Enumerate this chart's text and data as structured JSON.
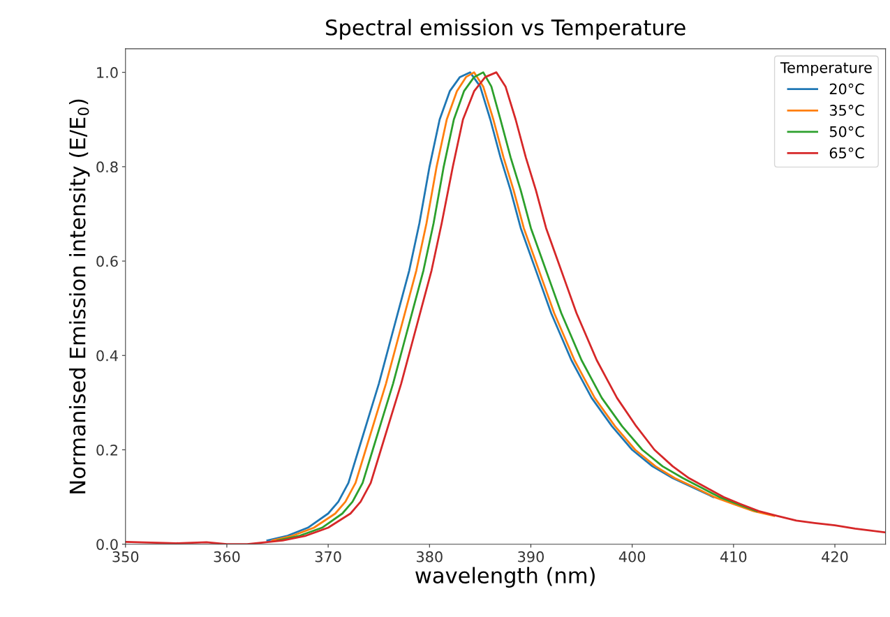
{
  "chart_data": {
    "type": "line",
    "title": "Spectral emission vs Temperature",
    "xlabel": "wavelength (nm)",
    "ylabel": "Normanised Emission intensity (E/E$_{0}$)",
    "legend_title": "Temperature",
    "legend": "top right",
    "grid": false,
    "xlim": [
      350,
      425
    ],
    "xticks": [
      350,
      360,
      370,
      380,
      390,
      400,
      410,
      420
    ],
    "ylim": [
      0,
      1.05
    ],
    "yticks": [
      {
        "value": 0,
        "label": "0.0"
      },
      0.2,
      0.4,
      0.6,
      0.8,
      {
        "value": 1,
        "label": "1.0"
      }
    ],
    "series": [
      {
        "name": "20°C",
        "color": "#1f77b4",
        "x": [
          364,
          366,
          368,
          370,
          371,
          372,
          373,
          374,
          375,
          376,
          377,
          378,
          379,
          380,
          381,
          382,
          383,
          384,
          385,
          386,
          387,
          388,
          389,
          390,
          391,
          392,
          393,
          394,
          395,
          396,
          398,
          400,
          402,
          404,
          406,
          408
        ],
        "values": [
          0.008,
          0.018,
          0.035,
          0.065,
          0.09,
          0.13,
          0.2,
          0.27,
          0.34,
          0.42,
          0.5,
          0.58,
          0.68,
          0.8,
          0.9,
          0.96,
          0.99,
          1.0,
          0.97,
          0.9,
          0.82,
          0.75,
          0.67,
          0.61,
          0.55,
          0.49,
          0.44,
          0.39,
          0.35,
          0.31,
          0.25,
          0.2,
          0.165,
          0.14,
          0.12,
          0.1
        ]
      },
      {
        "name": "35°C",
        "color": "#ff7f0e",
        "x": [
          364.5,
          366.5,
          368.6,
          370.7,
          371.7,
          372.7,
          373.7,
          374.7,
          375.7,
          376.7,
          377.7,
          378.7,
          379.7,
          380.7,
          381.7,
          382.7,
          383.6,
          384.4,
          385.3,
          386.3,
          387.3,
          388.3,
          389.3,
          390.3,
          391.3,
          392.3,
          393.3,
          394.3,
          395.3,
          396.3,
          398.3,
          400.3,
          402.3,
          404.2,
          406.2,
          408.1,
          410,
          412,
          414
        ],
        "values": [
          0.008,
          0.018,
          0.035,
          0.065,
          0.09,
          0.13,
          0.2,
          0.27,
          0.34,
          0.42,
          0.5,
          0.58,
          0.68,
          0.8,
          0.9,
          0.96,
          0.99,
          1.0,
          0.97,
          0.9,
          0.82,
          0.75,
          0.67,
          0.61,
          0.55,
          0.49,
          0.44,
          0.39,
          0.35,
          0.31,
          0.25,
          0.2,
          0.165,
          0.14,
          0.12,
          0.1,
          0.085,
          0.07,
          0.06
        ]
      },
      {
        "name": "50°C",
        "color": "#2ca02c",
        "x": [
          365,
          367.2,
          369.4,
          371.4,
          372.4,
          373.4,
          374.4,
          375.4,
          376.4,
          377.4,
          378.4,
          379.4,
          380.4,
          381.4,
          382.4,
          383.4,
          384.4,
          385.3,
          386.1,
          387,
          388,
          389,
          390,
          391,
          392,
          393,
          394,
          395,
          396,
          397,
          399,
          401,
          403,
          405,
          406.8,
          408.6,
          410.4,
          412.3
        ],
        "values": [
          0.008,
          0.018,
          0.035,
          0.065,
          0.09,
          0.13,
          0.2,
          0.27,
          0.34,
          0.42,
          0.5,
          0.58,
          0.68,
          0.8,
          0.9,
          0.96,
          0.99,
          1.0,
          0.97,
          0.9,
          0.82,
          0.75,
          0.67,
          0.61,
          0.55,
          0.49,
          0.44,
          0.39,
          0.35,
          0.31,
          0.25,
          0.2,
          0.165,
          0.14,
          0.12,
          0.1,
          0.085,
          0.07
        ]
      },
      {
        "name": "65°C",
        "color": "#d62728",
        "x": [
          350,
          355,
          358,
          360,
          362,
          365.5,
          367.8,
          370,
          372.2,
          373.2,
          374.2,
          375.2,
          376.2,
          377.2,
          378.2,
          379.2,
          380.2,
          381.2,
          382.3,
          383.3,
          384.4,
          385.5,
          386.6,
          387.5,
          388.5,
          389.5,
          390.5,
          391.5,
          392.5,
          393.5,
          394.5,
          395.5,
          396.5,
          397.5,
          398.5,
          400.4,
          402.2,
          404,
          405.6,
          407.3,
          409,
          410.7,
          412.5,
          414.3,
          416.2,
          418,
          420,
          422,
          425
        ],
        "values": [
          0.005,
          0.002,
          0.004,
          0.0,
          0.0,
          0.008,
          0.018,
          0.035,
          0.065,
          0.09,
          0.13,
          0.2,
          0.27,
          0.34,
          0.42,
          0.5,
          0.58,
          0.68,
          0.8,
          0.9,
          0.96,
          0.99,
          1.0,
          0.97,
          0.9,
          0.82,
          0.75,
          0.67,
          0.61,
          0.55,
          0.49,
          0.44,
          0.39,
          0.35,
          0.31,
          0.25,
          0.2,
          0.165,
          0.14,
          0.12,
          0.1,
          0.085,
          0.07,
          0.06,
          0.05,
          0.045,
          0.04,
          0.033,
          0.025
        ]
      }
    ]
  }
}
